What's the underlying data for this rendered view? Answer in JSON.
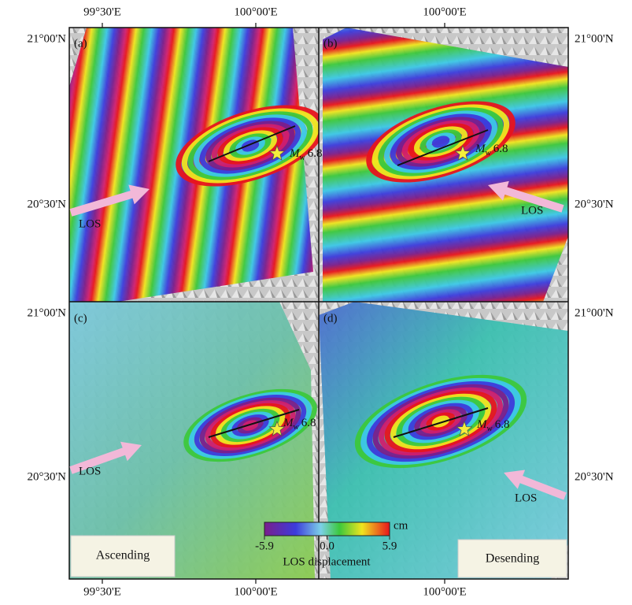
{
  "axes": {
    "top": [
      "99°30'E",
      "100°00'E",
      "100°00'E"
    ],
    "bottom": [
      "99°30'E",
      "100°00'E",
      "100°00'E"
    ],
    "left": [
      "21°00'N",
      "20°30'N",
      "21°00'N",
      "20°30'N"
    ],
    "right": [
      "21°00'N",
      "20°30'N",
      "21°00'N",
      "20°30'N"
    ]
  },
  "panels": [
    {
      "label": "(a)",
      "los": "LOS",
      "magnitude": {
        "symbol": "M",
        "subscript": "w",
        "value": "6.8"
      }
    },
    {
      "label": "(b)",
      "los": "LOS",
      "magnitude": {
        "symbol": "M",
        "subscript": "w",
        "value": "6.8"
      }
    },
    {
      "label": "(c)",
      "los": "LOS",
      "magnitude": {
        "symbol": "M",
        "subscript": "w",
        "value": "6.8"
      }
    },
    {
      "label": "(d)",
      "los": "LOS",
      "magnitude": {
        "symbol": "M",
        "subscript": "w",
        "value": "6.8"
      }
    }
  ],
  "legends": {
    "ascending": "Ascending",
    "descending": "Desending"
  },
  "colorbar": {
    "lim": [
      -5.9,
      5.9
    ],
    "ticks": [
      -5.9,
      {
        "value": 0,
        "label": "0.0"
      },
      5.9
    ],
    "unit": "cm",
    "label": "LOS displacement"
  }
}
